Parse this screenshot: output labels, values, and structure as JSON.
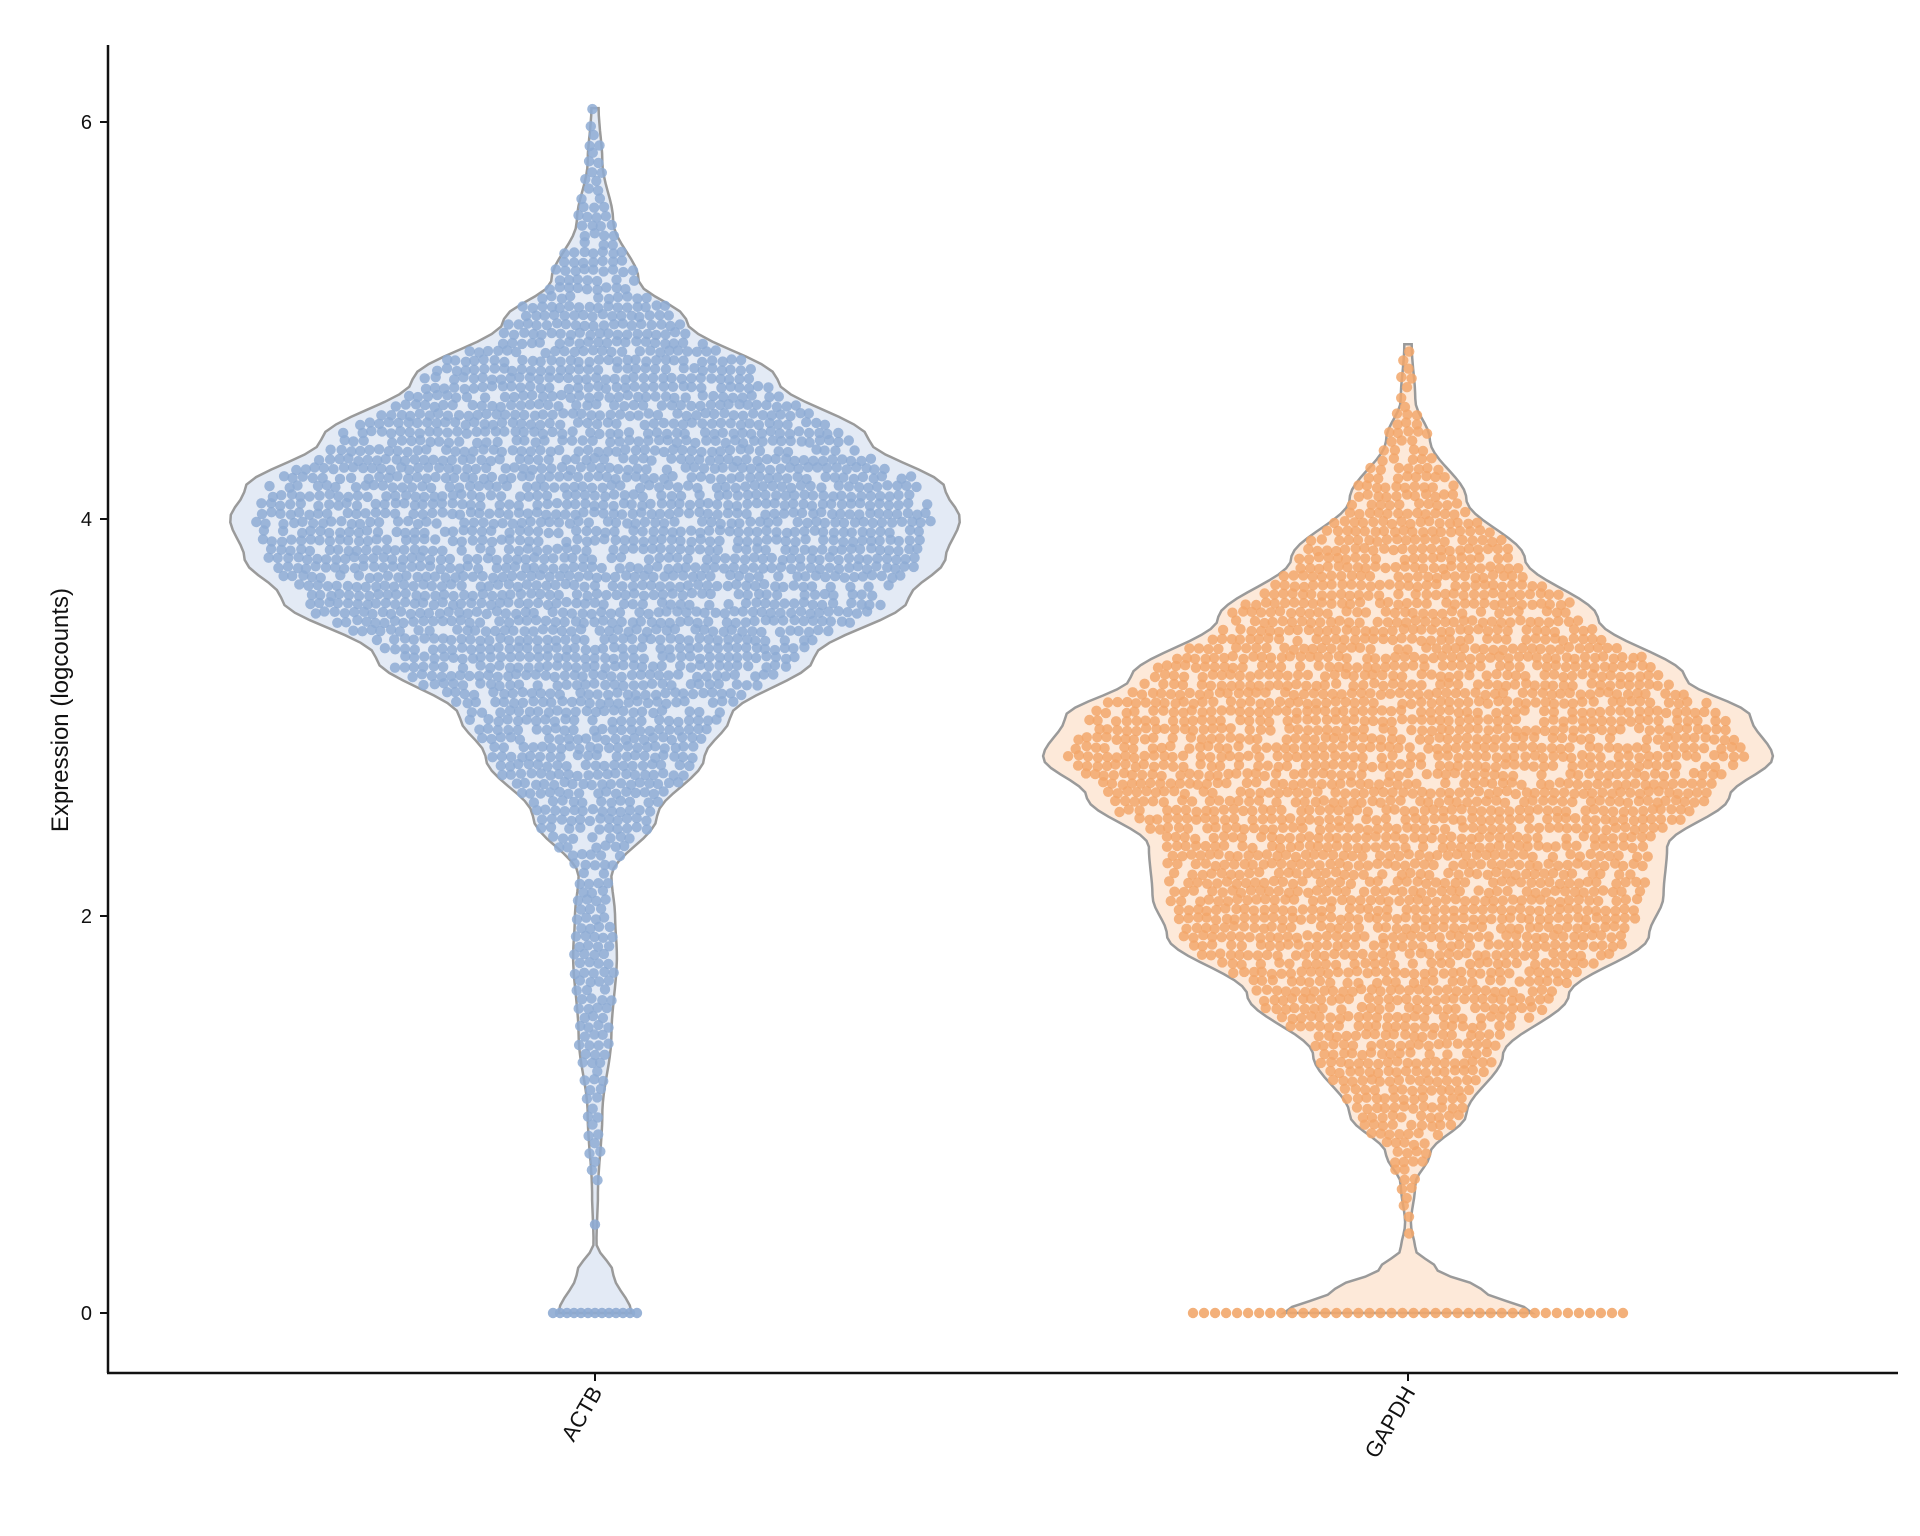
{
  "chart_data": {
    "type": "violin",
    "ylabel": "Expression (logcounts)",
    "xlabel": "",
    "ylim": [
      -0.3,
      6.4
    ],
    "y_ticks": [
      0,
      2,
      4,
      6
    ],
    "grid": false,
    "legend": "none",
    "series": [
      {
        "category": "ACTB",
        "fill_color": "#e3eaf5",
        "point_color": "#8eabd3",
        "n_zero": 13,
        "max": 6.07,
        "density_profile": [
          [
            0,
            0.1
          ],
          [
            0.2,
            0.05
          ],
          [
            0.35,
            0.004
          ],
          [
            0.6,
            0.008
          ],
          [
            1.0,
            0.02
          ],
          [
            1.4,
            0.045
          ],
          [
            1.8,
            0.06
          ],
          [
            2.0,
            0.055
          ],
          [
            2.2,
            0.045
          ],
          [
            2.5,
            0.17
          ],
          [
            2.8,
            0.3
          ],
          [
            3.0,
            0.37
          ],
          [
            3.3,
            0.6
          ],
          [
            3.6,
            0.86
          ],
          [
            3.8,
            0.96
          ],
          [
            4.0,
            1.0
          ],
          [
            4.15,
            0.96
          ],
          [
            4.4,
            0.75
          ],
          [
            4.7,
            0.5
          ],
          [
            5.0,
            0.25
          ],
          [
            5.2,
            0.12
          ],
          [
            5.5,
            0.05
          ],
          [
            5.8,
            0.02
          ],
          [
            6.07,
            0.01
          ]
        ]
      },
      {
        "category": "GAPDH",
        "fill_color": "#fde9d9",
        "point_color": "#f2a76b",
        "n_zero": 40,
        "max": 4.88,
        "density_profile": [
          [
            0,
            0.34
          ],
          [
            0.12,
            0.2
          ],
          [
            0.22,
            0.08
          ],
          [
            0.32,
            0.02
          ],
          [
            0.45,
            0.008
          ],
          [
            0.65,
            0.02
          ],
          [
            0.8,
            0.06
          ],
          [
            1.0,
            0.16
          ],
          [
            1.3,
            0.26
          ],
          [
            1.6,
            0.44
          ],
          [
            1.9,
            0.66
          ],
          [
            2.1,
            0.7
          ],
          [
            2.35,
            0.71
          ],
          [
            2.6,
            0.88
          ],
          [
            2.8,
            1.0
          ],
          [
            3.0,
            0.94
          ],
          [
            3.2,
            0.76
          ],
          [
            3.5,
            0.52
          ],
          [
            3.8,
            0.32
          ],
          [
            4.1,
            0.16
          ],
          [
            4.4,
            0.06
          ],
          [
            4.6,
            0.02
          ],
          [
            4.88,
            0.01
          ]
        ]
      }
    ]
  }
}
